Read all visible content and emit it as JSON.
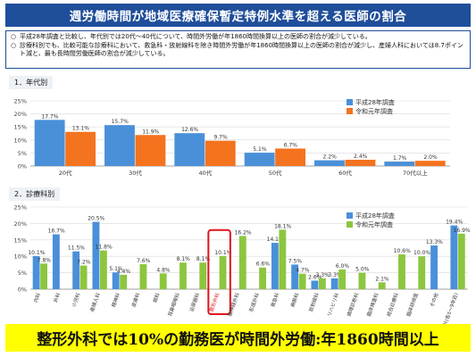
{
  "page_title": "週労働時間が地域医療確保暫定特例水準を超える医師の割合",
  "notes": [
    {
      "mark": "○",
      "text": "平成28年調査と比較し、年代別では20代〜40代について、時間外労働が年1860時間換算以上の医師の割合が減少している。"
    },
    {
      "mark": "○",
      "text": "診療科別でも、比較可能な診療科において、救急科・放射線科を除き時間外労働が年1860時間換算以上の医師の割合が減少し、産婦人科においては8.7ポイント減と、最も長時間労働医師の割合が減少している。"
    }
  ],
  "banner": "整形外科では10%の勤務医が時間外労働:年1860時間以上",
  "colors": {
    "h28": "#4a90d9",
    "r1_age": "#f4731f",
    "r1_dept": "#8cc63f",
    "highlight": "#e0141e"
  },
  "chart_data": [
    {
      "type": "bar",
      "section_label": "1．年代別",
      "categories": [
        "20代",
        "30代",
        "40代",
        "50代",
        "60代",
        "70代以上"
      ],
      "series": [
        {
          "name": "平成28年調査",
          "values": [
            17.7,
            15.7,
            12.6,
            5.1,
            2.2,
            1.7
          ]
        },
        {
          "name": "令和元年調査",
          "values": [
            13.1,
            11.9,
            9.7,
            6.7,
            2.4,
            2.0
          ]
        }
      ],
      "ylim": [
        0,
        25
      ],
      "yticks": [
        "0%",
        "5%",
        "10%",
        "15%",
        "20%",
        "25%"
      ],
      "grid": true,
      "legend_position": "right"
    },
    {
      "type": "bar",
      "section_label": "2．診療科別",
      "categories": [
        "内科",
        "外科",
        "小児科",
        "産婦人科",
        "精神科",
        "皮膚科",
        "眼科",
        "耳鼻咽喉科",
        "泌尿器科",
        "整形外科",
        "脳神経外科",
        "形成外科",
        "救急科",
        "麻酔科",
        "放射線科",
        "リハビリ科",
        "病理診断科",
        "臨床検査科",
        "総合診療科",
        "臨床研修医",
        "その他",
        "計(各5〜9年目)"
      ],
      "series": [
        {
          "name": "平成28年調査",
          "values": [
            10.1,
            16.7,
            11.5,
            20.5,
            5.1,
            null,
            null,
            null,
            null,
            null,
            null,
            null,
            14.1,
            7.5,
            2.6,
            3.3,
            null,
            null,
            null,
            null,
            13.3,
            19.4
          ]
        },
        {
          "name": "令和元年調査",
          "values": [
            7.8,
            null,
            7.2,
            11.8,
            4.4,
            7.6,
            4.8,
            8.1,
            8.1,
            10.1,
            16.2,
            6.6,
            18.1,
            4.7,
            3.3,
            6.0,
            5.0,
            2.1,
            10.6,
            10.0,
            null,
            16.9
          ]
        }
      ],
      "ylim": [
        0,
        25
      ],
      "yticks": [
        "0%",
        "5%",
        "10%",
        "15%",
        "20%",
        "25%"
      ],
      "grid": true,
      "legend_position": "top-right",
      "highlight_category": "整形外科"
    }
  ]
}
